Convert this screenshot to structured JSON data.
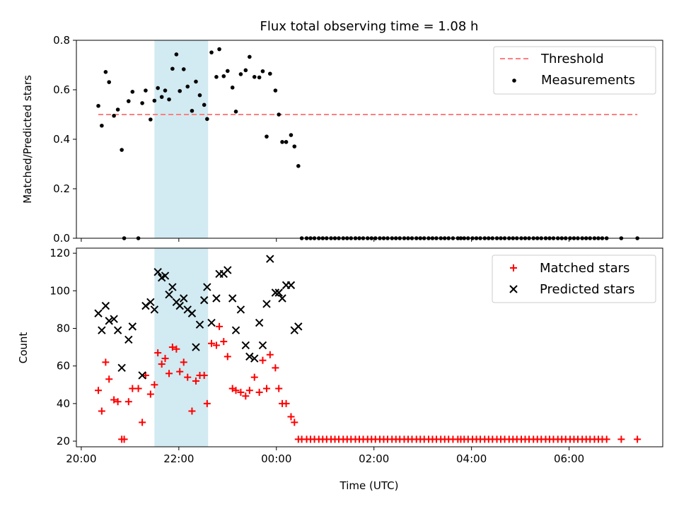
{
  "chart_data": [
    {
      "type": "scatter",
      "title": "Flux total observing time = 1.08 h",
      "ylabel": "Matched/Predicted stars",
      "xlabel": "",
      "ylim": [
        0,
        0.8
      ],
      "yticks": [
        0.0,
        0.2,
        0.4,
        0.6,
        0.8
      ],
      "ytick_labels": [
        "0.0",
        "0.2",
        "0.4",
        "0.6",
        "0.8"
      ],
      "xlim_hours": [
        19.9,
        31.92
      ],
      "xticks_hours": [
        20,
        22,
        24,
        26,
        28,
        30
      ],
      "xtick_labels": [],
      "shaded_span_hours": [
        21.5,
        22.6
      ],
      "shade_color": "#add8e6",
      "legend_position": "upper right",
      "legend": [
        {
          "label": "Threshold",
          "kind": "dashed-line",
          "color": "#ff7f7f"
        },
        {
          "label": "Measurements",
          "kind": "dot",
          "color": "#000000"
        }
      ],
      "threshold": {
        "name": "Threshold",
        "value": 0.5,
        "x_range_hours": [
          20.35,
          31.4
        ],
        "color": "#ff7f7f"
      },
      "measurements": {
        "name": "Measurements",
        "color": "#000000",
        "x_hours": [
          20.35,
          20.42,
          20.5,
          20.57,
          20.67,
          20.75,
          20.83,
          20.88,
          20.97,
          21.05,
          21.17,
          21.25,
          21.32,
          21.42,
          21.5,
          21.57,
          21.65,
          21.72,
          21.8,
          21.87,
          21.95,
          22.02,
          22.1,
          22.18,
          22.27,
          22.35,
          22.43,
          22.52,
          22.58,
          22.67,
          22.77,
          22.83,
          22.92,
          23.0,
          23.1,
          23.17,
          23.27,
          23.37,
          23.45,
          23.55,
          23.65,
          23.72,
          23.8,
          23.87,
          23.98,
          24.05,
          24.12,
          24.2,
          24.3,
          24.37,
          24.45,
          24.52,
          24.62,
          24.7,
          24.78,
          24.87,
          24.95,
          25.03,
          25.12,
          25.2,
          25.28,
          25.37,
          25.45,
          25.53,
          25.62,
          25.7,
          25.78,
          25.87,
          25.95,
          26.03,
          26.12,
          26.2,
          26.28,
          26.37,
          26.45,
          26.53,
          26.62,
          26.7,
          26.78,
          26.87,
          26.95,
          27.03,
          27.12,
          27.2,
          27.28,
          27.37,
          27.45,
          27.53,
          27.62,
          27.72,
          27.78,
          27.85,
          27.93,
          28.02,
          28.1,
          28.18,
          28.27,
          28.35,
          28.43,
          28.52,
          28.6,
          28.68,
          28.77,
          28.85,
          28.93,
          29.02,
          29.1,
          29.18,
          29.27,
          29.35,
          29.43,
          29.52,
          29.6,
          29.68,
          29.77,
          29.85,
          29.93,
          30.02,
          30.1,
          30.18,
          30.27,
          30.35,
          30.43,
          30.52,
          30.6,
          30.68,
          30.77,
          31.07,
          31.4
        ],
        "y": [
          0.535,
          0.455,
          0.672,
          0.631,
          0.495,
          0.52,
          0.357,
          0.0,
          0.554,
          0.592,
          0.0,
          0.546,
          0.597,
          0.48,
          0.556,
          0.607,
          0.571,
          0.597,
          0.561,
          0.685,
          0.743,
          0.595,
          0.683,
          0.613,
          0.515,
          0.633,
          0.578,
          0.539,
          0.482,
          0.751,
          0.652,
          0.764,
          0.655,
          0.676,
          0.609,
          0.512,
          0.663,
          0.679,
          0.733,
          0.652,
          0.65,
          0.675,
          0.411,
          0.665,
          0.597,
          0.5,
          0.389,
          0.389,
          0.417,
          0.371,
          0.292,
          0.0,
          0.0,
          0.0,
          0.0,
          0.0,
          0.0,
          0.0,
          0.0,
          0.0,
          0.0,
          0.0,
          0.0,
          0.0,
          0.0,
          0.0,
          0.0,
          0.0,
          0.0,
          0.0,
          0.0,
          0.0,
          0.0,
          0.0,
          0.0,
          0.0,
          0.0,
          0.0,
          0.0,
          0.0,
          0.0,
          0.0,
          0.0,
          0.0,
          0.0,
          0.0,
          0.0,
          0.0,
          0.0,
          0.0,
          0.0,
          0.0,
          0.0,
          0.0,
          0.0,
          0.0,
          0.0,
          0.0,
          0.0,
          0.0,
          0.0,
          0.0,
          0.0,
          0.0,
          0.0,
          0.0,
          0.0,
          0.0,
          0.0,
          0.0,
          0.0,
          0.0,
          0.0,
          0.0,
          0.0,
          0.0,
          0.0,
          0.0,
          0.0,
          0.0,
          0.0,
          0.0,
          0.0,
          0.0,
          0.0,
          0.0,
          0.0,
          0.0,
          0.0
        ]
      }
    },
    {
      "type": "scatter",
      "title": "",
      "xlabel": "Time (UTC)",
      "ylabel": "Count",
      "ylim": [
        17,
        122.7
      ],
      "yticks": [
        20,
        40,
        60,
        80,
        100,
        120
      ],
      "ytick_labels": [
        "20",
        "40",
        "60",
        "80",
        "100",
        "120"
      ],
      "xlim_hours": [
        19.9,
        31.92
      ],
      "xticks_hours": [
        20,
        22,
        24,
        26,
        28,
        30
      ],
      "xtick_labels": [
        "20:00",
        "22:00",
        "00:00",
        "02:00",
        "04:00",
        "06:00"
      ],
      "shaded_span_hours": [
        21.5,
        22.6
      ],
      "shade_color": "#add8e6",
      "legend_position": "upper right",
      "legend": [
        {
          "label": "Matched stars",
          "kind": "plus",
          "color": "#ff0000"
        },
        {
          "label": "Predicted stars",
          "kind": "cross",
          "color": "#000000"
        }
      ],
      "series": [
        {
          "name": "Matched stars",
          "marker": "plus",
          "color": "#ff0000",
          "x_hours": [
            20.35,
            20.42,
            20.5,
            20.57,
            20.67,
            20.75,
            20.83,
            20.88,
            20.97,
            21.05,
            21.17,
            21.25,
            21.32,
            21.42,
            21.5,
            21.57,
            21.65,
            21.72,
            21.8,
            21.87,
            21.95,
            22.02,
            22.1,
            22.18,
            22.27,
            22.35,
            22.43,
            22.52,
            22.58,
            22.67,
            22.77,
            22.83,
            22.92,
            23.0,
            23.1,
            23.17,
            23.27,
            23.37,
            23.45,
            23.55,
            23.65,
            23.72,
            23.8,
            23.87,
            23.98,
            24.05,
            24.12,
            24.2,
            24.3,
            24.37,
            24.45,
            24.52,
            24.62,
            24.7,
            24.78,
            24.87,
            24.95,
            25.03,
            25.12,
            25.2,
            25.28,
            25.37,
            25.45,
            25.53,
            25.62,
            25.7,
            25.78,
            25.87,
            25.95,
            26.03,
            26.12,
            26.2,
            26.28,
            26.37,
            26.45,
            26.53,
            26.62,
            26.7,
            26.78,
            26.87,
            26.95,
            27.03,
            27.12,
            27.2,
            27.28,
            27.37,
            27.45,
            27.53,
            27.62,
            27.72,
            27.78,
            27.85,
            27.93,
            28.02,
            28.1,
            28.18,
            28.27,
            28.35,
            28.43,
            28.52,
            28.6,
            28.68,
            28.77,
            28.85,
            28.93,
            29.02,
            29.1,
            29.18,
            29.27,
            29.35,
            29.43,
            29.52,
            29.6,
            29.68,
            29.77,
            29.85,
            29.93,
            30.02,
            30.1,
            30.18,
            30.27,
            30.35,
            30.43,
            30.52,
            30.6,
            30.68,
            30.77,
            31.07,
            31.4
          ],
          "y": [
            47,
            36,
            62,
            53,
            42,
            41,
            21,
            21,
            41,
            48,
            48,
            30,
            55,
            45,
            50,
            67,
            61,
            64,
            56,
            70,
            69,
            57,
            62,
            54,
            36,
            52,
            55,
            55,
            40,
            72,
            71,
            81,
            73,
            65,
            48,
            47,
            46,
            44,
            47,
            54,
            46,
            63,
            48,
            66,
            59,
            48,
            40,
            40,
            33,
            30,
            21,
            21,
            21,
            21,
            21,
            21,
            21,
            21,
            21,
            21,
            21,
            21,
            21,
            21,
            21,
            21,
            21,
            21,
            21,
            21,
            21,
            21,
            21,
            21,
            21,
            21,
            21,
            21,
            21,
            21,
            21,
            21,
            21,
            21,
            21,
            21,
            21,
            21,
            21,
            21,
            21,
            21,
            21,
            21,
            21,
            21,
            21,
            21,
            21,
            21,
            21,
            21,
            21,
            21,
            21,
            21,
            21,
            21,
            21,
            21,
            21,
            21,
            21,
            21,
            21,
            21,
            21,
            21,
            21,
            21,
            21,
            21,
            21,
            21,
            21,
            21,
            21,
            21,
            21
          ]
        },
        {
          "name": "Predicted stars",
          "marker": "cross",
          "color": "#000000",
          "x_hours": [
            20.35,
            20.42,
            20.5,
            20.57,
            20.67,
            20.75,
            20.83,
            20.97,
            21.05,
            21.25,
            21.32,
            21.42,
            21.5,
            21.57,
            21.65,
            21.72,
            21.8,
            21.87,
            21.95,
            22.02,
            22.1,
            22.18,
            22.27,
            22.35,
            22.43,
            22.52,
            22.58,
            22.67,
            22.77,
            22.83,
            22.92,
            23.0,
            23.1,
            23.17,
            23.27,
            23.37,
            23.45,
            23.55,
            23.65,
            23.72,
            23.8,
            23.87,
            23.98,
            24.05,
            24.12,
            24.2,
            24.3,
            24.37,
            24.45
          ],
          "y": [
            88,
            79,
            92,
            84,
            85,
            79,
            59,
            74,
            81,
            55,
            92,
            94,
            90,
            110,
            107,
            108,
            98,
            102,
            94,
            92,
            96,
            90,
            88,
            70,
            82,
            95,
            102,
            83,
            96,
            109,
            109,
            111,
            96,
            79,
            90,
            71,
            65,
            64,
            83,
            71,
            93,
            117,
            99,
            99,
            96,
            103,
            103,
            79,
            81
          ]
        }
      ]
    }
  ]
}
